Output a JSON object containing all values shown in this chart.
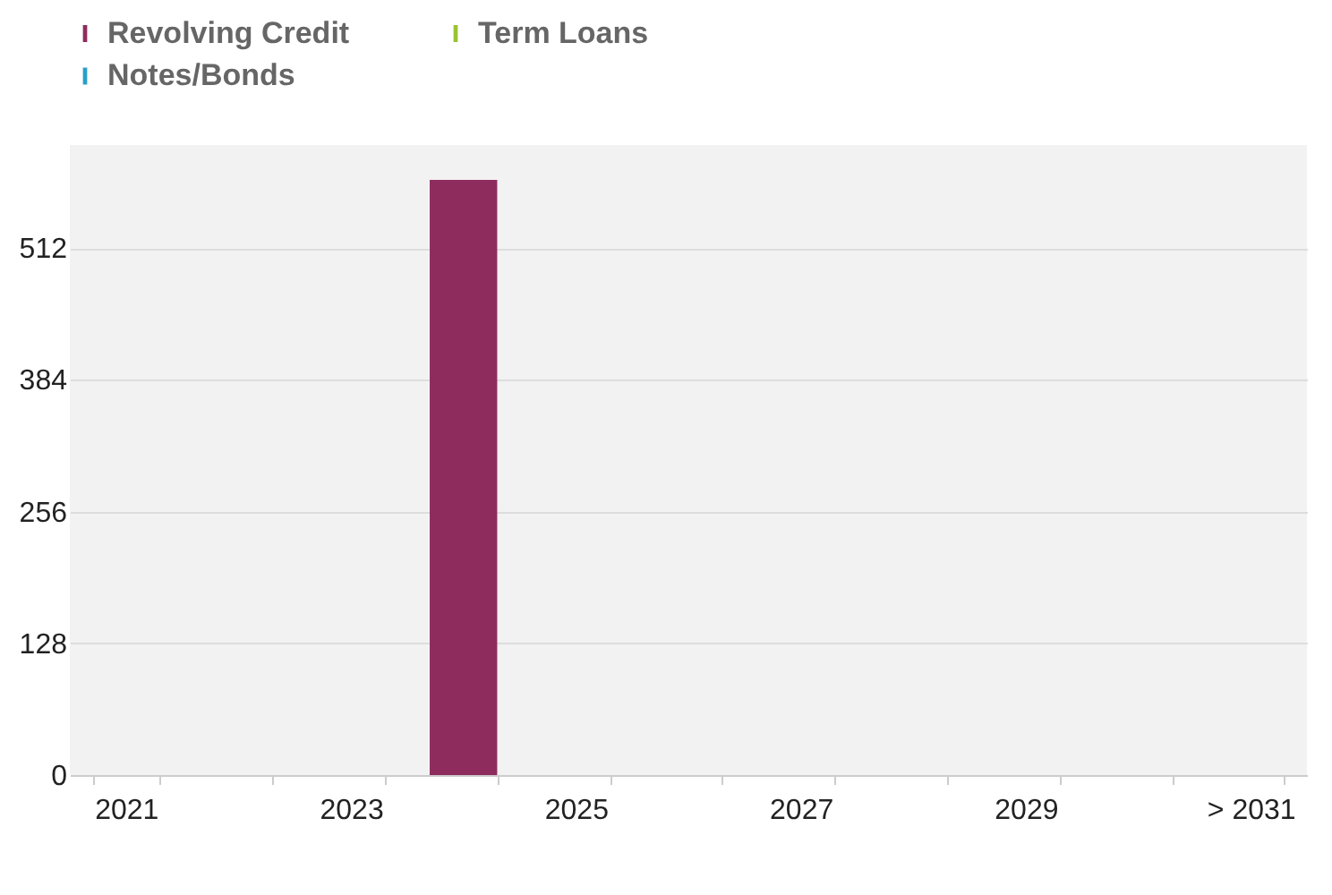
{
  "chart_data": {
    "type": "bar",
    "categories": [
      "2021",
      null,
      "2023",
      null,
      "2025",
      null,
      "2027",
      null,
      "2029",
      null,
      "> 2031"
    ],
    "series": [
      {
        "name": "Revolving Credit",
        "color": "#8e2c5e",
        "values": [
          null,
          null,
          null,
          578,
          null,
          null,
          null,
          null,
          null,
          null,
          null
        ]
      },
      {
        "name": "Term Loans",
        "color": "#9ac332",
        "values": [
          null,
          null,
          null,
          null,
          null,
          null,
          null,
          null,
          null,
          null,
          null
        ]
      },
      {
        "name": "Notes/Bonds",
        "color": "#2a9fc9",
        "values": [
          null,
          null,
          null,
          null,
          null,
          null,
          null,
          null,
          null,
          null,
          null
        ]
      }
    ],
    "ylim": [
      0,
      612
    ],
    "yticks": [
      0,
      128,
      256,
      384,
      512
    ],
    "grid": "y",
    "legend": "top left"
  }
}
